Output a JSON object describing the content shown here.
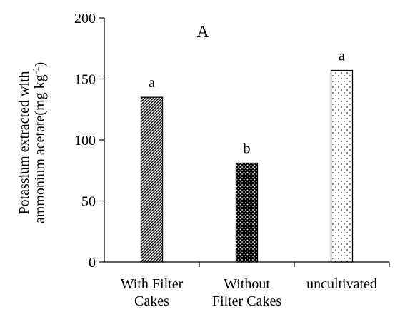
{
  "chart_data": {
    "type": "bar",
    "panel_label": "A",
    "categories": [
      [
        "With Filter",
        "Cakes"
      ],
      [
        "Without",
        "Filter Cakes"
      ],
      [
        "uncultivated"
      ]
    ],
    "values": [
      135,
      81,
      157
    ],
    "significance_letters": [
      "a",
      "b",
      "a"
    ],
    "bar_fills": [
      "diagonal-hatch",
      "dense-dots",
      "sparse-dots"
    ],
    "ylabel_line1": "Potassium extracted with",
    "ylabel_line2_prefix": "ammonium acetate(mg kg",
    "ylabel_line2_sup": "-1",
    "ylabel_line2_suffix": ")",
    "ylim": [
      0,
      200
    ],
    "yticks": [
      0,
      50,
      100,
      150,
      200
    ],
    "grid": false,
    "legend": "none"
  }
}
